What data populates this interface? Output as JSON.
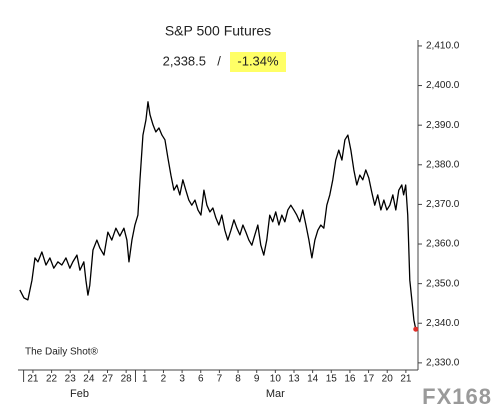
{
  "chart_data": {
    "type": "line",
    "title": "S&P 500 Futures",
    "last_value_label": "2,338.5",
    "separator": "/",
    "change_label": "-1.34%",
    "change_highlight": "#ffff66",
    "source": "The Daily Shot®",
    "logo": "FX168",
    "xlim": [
      -0.3,
      21.15
    ],
    "xticks": [
      {
        "value": 0.5,
        "label": "21"
      },
      {
        "value": 1.5,
        "label": "22"
      },
      {
        "value": 2.5,
        "label": "23"
      },
      {
        "value": 3.5,
        "label": "24"
      },
      {
        "value": 4.5,
        "label": "27"
      },
      {
        "value": 5.5,
        "label": "28"
      },
      {
        "value": 6.5,
        "label": "1"
      },
      {
        "value": 7.5,
        "label": "2"
      },
      {
        "value": 8.5,
        "label": "3"
      },
      {
        "value": 9.5,
        "label": "6"
      },
      {
        "value": 10.5,
        "label": "7"
      },
      {
        "value": 11.5,
        "label": "8"
      },
      {
        "value": 12.5,
        "label": "9"
      },
      {
        "value": 13.5,
        "label": "10"
      },
      {
        "value": 14.5,
        "label": "13"
      },
      {
        "value": 15.5,
        "label": "14"
      },
      {
        "value": 16.5,
        "label": "15"
      },
      {
        "value": 17.5,
        "label": "16"
      },
      {
        "value": 18.5,
        "label": "17"
      },
      {
        "value": 19.5,
        "label": "20"
      },
      {
        "value": 20.5,
        "label": "21"
      }
    ],
    "x_groups": [
      {
        "label": "Feb",
        "from": 0,
        "to": 6
      },
      {
        "label": "Mar",
        "from": 6,
        "to": 21
      }
    ],
    "ylim": [
      2328.2,
      2411.5
    ],
    "yticks": [
      {
        "value": 2330,
        "label": "2,330.0"
      },
      {
        "value": 2340,
        "label": "2,340.0"
      },
      {
        "value": 2350,
        "label": "2,350.0"
      },
      {
        "value": 2360,
        "label": "2,360.0"
      },
      {
        "value": 2370,
        "label": "2,370.0"
      },
      {
        "value": 2380,
        "label": "2,380.0"
      },
      {
        "value": 2390,
        "label": "2,390.0"
      },
      {
        "value": 2400,
        "label": "2,400.0"
      },
      {
        "value": 2410,
        "label": "2,410.0"
      }
    ],
    "grid": false,
    "last_point_color": "#e0302a",
    "series": [
      {
        "name": "S&P 500 Futures",
        "color": "#000000",
        "x": [
          -0.2,
          0.02,
          0.23,
          0.45,
          0.61,
          0.77,
          0.98,
          1.2,
          1.41,
          1.62,
          1.84,
          2.05,
          2.27,
          2.48,
          2.64,
          2.86,
          3.02,
          3.23,
          3.34,
          3.45,
          3.55,
          3.72,
          3.93,
          4.09,
          4.31,
          4.52,
          4.73,
          4.95,
          5.16,
          5.38,
          5.54,
          5.65,
          5.81,
          5.97,
          6.13,
          6.24,
          6.4,
          6.56,
          6.67,
          6.78,
          6.94,
          7.09,
          7.26,
          7.42,
          7.58,
          7.74,
          7.9,
          8.06,
          8.22,
          8.38,
          8.54,
          8.7,
          8.86,
          9.02,
          9.19,
          9.35,
          9.51,
          9.67,
          9.83,
          9.99,
          10.15,
          10.31,
          10.47,
          10.63,
          10.79,
          10.95,
          11.12,
          11.28,
          11.44,
          11.6,
          11.76,
          11.92,
          12.08,
          12.24,
          12.4,
          12.56,
          12.72,
          12.88,
          13.04,
          13.2,
          13.36,
          13.52,
          13.69,
          13.85,
          14.01,
          14.17,
          14.33,
          14.49,
          14.65,
          14.81,
          14.97,
          15.14,
          15.3,
          15.46,
          15.62,
          15.78,
          15.94,
          16.1,
          16.26,
          16.42,
          16.58,
          16.74,
          16.9,
          17.07,
          17.23,
          17.39,
          17.55,
          17.71,
          17.87,
          18.03,
          18.19,
          18.35,
          18.51,
          18.67,
          18.83,
          18.99,
          19.16,
          19.32,
          19.48,
          19.64,
          19.8,
          19.96,
          20.12,
          20.28,
          20.38,
          20.49,
          20.6,
          20.71,
          20.82,
          20.93,
          21.03
        ],
        "values": [
          2348.4,
          2346.4,
          2345.9,
          2350.9,
          2356.5,
          2355.5,
          2358.0,
          2354.7,
          2356.5,
          2353.9,
          2355.5,
          2354.7,
          2356.5,
          2353.9,
          2355.5,
          2357.2,
          2353.4,
          2355.5,
          2350.9,
          2347.1,
          2349.6,
          2358.5,
          2361.0,
          2359.0,
          2357.2,
          2363.0,
          2361.0,
          2364.0,
          2362.0,
          2364.0,
          2361.0,
          2355.5,
          2361.0,
          2364.8,
          2367.3,
          2376.2,
          2387.5,
          2391.3,
          2395.9,
          2392.6,
          2390.1,
          2388.3,
          2389.3,
          2387.5,
          2386.3,
          2381.7,
          2377.4,
          2373.6,
          2374.9,
          2372.4,
          2376.2,
          2373.6,
          2371.1,
          2369.8,
          2371.1,
          2368.6,
          2367.3,
          2373.6,
          2369.8,
          2368.1,
          2369.1,
          2366.6,
          2364.8,
          2367.3,
          2363.5,
          2361.0,
          2363.5,
          2366.1,
          2364.0,
          2362.3,
          2364.8,
          2363.0,
          2361.0,
          2359.7,
          2362.3,
          2364.8,
          2359.7,
          2357.2,
          2361.0,
          2367.3,
          2365.6,
          2368.1,
          2364.8,
          2367.3,
          2365.6,
          2368.6,
          2369.8,
          2368.6,
          2367.3,
          2365.6,
          2368.6,
          2364.8,
          2361.0,
          2356.5,
          2361.0,
          2363.5,
          2364.8,
          2364.0,
          2369.8,
          2372.4,
          2376.2,
          2381.2,
          2383.7,
          2381.2,
          2386.3,
          2387.5,
          2383.7,
          2378.7,
          2374.9,
          2377.4,
          2376.2,
          2378.7,
          2376.7,
          2373.1,
          2369.8,
          2372.4,
          2368.6,
          2371.1,
          2368.6,
          2369.8,
          2372.4,
          2368.6,
          2373.6,
          2374.9,
          2372.4,
          2374.9,
          2367.3,
          2350.9,
          2345.9,
          2340.8,
          2338.5
        ]
      }
    ]
  }
}
